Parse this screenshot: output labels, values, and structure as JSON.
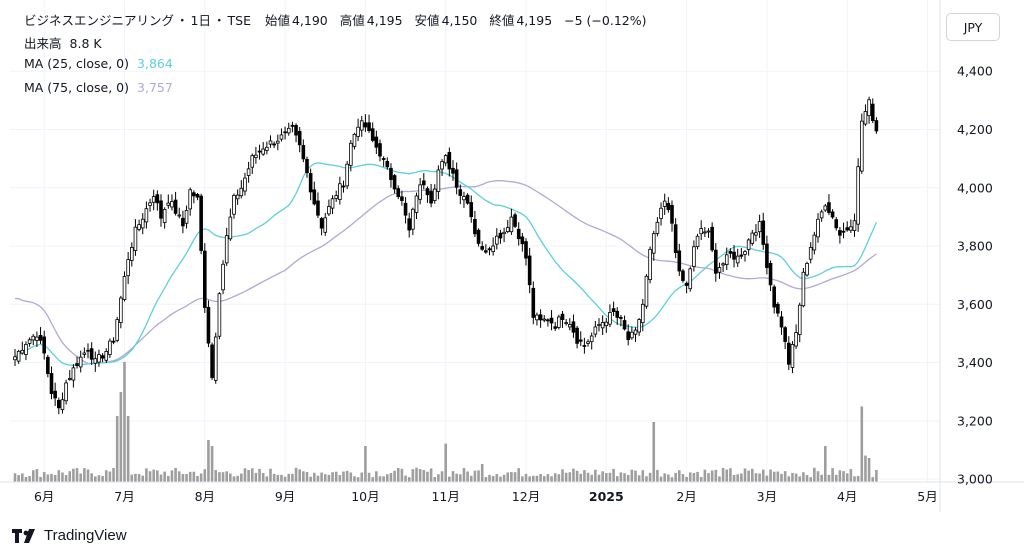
{
  "header": {
    "symbol": "ビジネスエンジニアリング",
    "sep1": "・",
    "interval": "1日",
    "sep2": "・",
    "exchange": "TSE",
    "open_label": "始値",
    "open": "4,190",
    "high_label": "高値",
    "high": "4,195",
    "low_label": "安値",
    "low": "4,150",
    "close_label": "終値",
    "close": "4,195",
    "change": "−5 (−0.12%)",
    "volume_label": "出来高",
    "volume": "8.8 K",
    "ma25_label": "MA (25, close, 0)",
    "ma25_value": "3,864",
    "ma75_label": "MA (75, close, 0)",
    "ma75_value": "3,757"
  },
  "currency": "JPY",
  "brand": "TradingView",
  "colors": {
    "up_body": "#ffffff",
    "down_body": "#000000",
    "candle_outline": "#000000",
    "volume": "#9e9e9e",
    "ma25": "#5cd0dc",
    "ma75": "#b4a7d6",
    "grid": "#f0f3fa",
    "text": "#131722"
  },
  "chart_data": {
    "type": "candlestick",
    "y_axis": {
      "ticks": [
        "4,400",
        "4,200",
        "4,000",
        "3,800",
        "3,600",
        "3,400",
        "3,200",
        "3,000"
      ],
      "tick_values": [
        4400,
        4200,
        4000,
        3800,
        3600,
        3400,
        3200,
        3000
      ],
      "range": [
        2990,
        4490
      ]
    },
    "x_axis": {
      "ticks": [
        "6月",
        "7月",
        "8月",
        "9月",
        "10月",
        "11月",
        "12月",
        "2025",
        "2月",
        "3月",
        "4月",
        "5月"
      ],
      "tick_index": [
        8,
        30,
        52,
        74,
        96,
        118,
        140,
        162,
        184,
        206,
        228,
        250
      ],
      "bold_tick": "2025"
    },
    "grid": true,
    "ma25_last": 3864,
    "ma75_last": 3757,
    "anchors": [
      [
        0,
        3420
      ],
      [
        3,
        3470
      ],
      [
        6,
        3500
      ],
      [
        8,
        3430
      ],
      [
        10,
        3300
      ],
      [
        12,
        3240
      ],
      [
        14,
        3330
      ],
      [
        17,
        3400
      ],
      [
        20,
        3450
      ],
      [
        22,
        3400
      ],
      [
        25,
        3440
      ],
      [
        27,
        3480
      ],
      [
        29,
        3620
      ],
      [
        31,
        3760
      ],
      [
        33,
        3850
      ],
      [
        35,
        3900
      ],
      [
        38,
        3980
      ],
      [
        40,
        3900
      ],
      [
        42,
        3960
      ],
      [
        44,
        3920
      ],
      [
        46,
        3870
      ],
      [
        48,
        3990
      ],
      [
        50,
        3960
      ],
      [
        52,
        3600
      ],
      [
        54,
        3350
      ],
      [
        56,
        3650
      ],
      [
        58,
        3830
      ],
      [
        60,
        3960
      ],
      [
        62,
        4000
      ],
      [
        65,
        4100
      ],
      [
        68,
        4140
      ],
      [
        71,
        4160
      ],
      [
        74,
        4180
      ],
      [
        76,
        4200
      ],
      [
        78,
        4140
      ],
      [
        80,
        4050
      ],
      [
        82,
        3950
      ],
      [
        84,
        3870
      ],
      [
        86,
        3930
      ],
      [
        88,
        3980
      ],
      [
        90,
        4020
      ],
      [
        92,
        4150
      ],
      [
        94,
        4220
      ],
      [
        96,
        4210
      ],
      [
        98,
        4160
      ],
      [
        100,
        4120
      ],
      [
        102,
        4060
      ],
      [
        104,
        4010
      ],
      [
        106,
        3950
      ],
      [
        108,
        3850
      ],
      [
        110,
        3980
      ],
      [
        112,
        4020
      ],
      [
        114,
        3960
      ],
      [
        116,
        4060
      ],
      [
        118,
        4100
      ],
      [
        120,
        4050
      ],
      [
        122,
        3980
      ],
      [
        124,
        3960
      ],
      [
        126,
        3850
      ],
      [
        128,
        3780
      ],
      [
        130,
        3800
      ],
      [
        132,
        3830
      ],
      [
        134,
        3850
      ],
      [
        136,
        3900
      ],
      [
        138,
        3840
      ],
      [
        140,
        3760
      ],
      [
        142,
        3560
      ],
      [
        144,
        3540
      ],
      [
        146,
        3550
      ],
      [
        148,
        3530
      ],
      [
        150,
        3560
      ],
      [
        152,
        3540
      ],
      [
        154,
        3480
      ],
      [
        156,
        3460
      ],
      [
        158,
        3490
      ],
      [
        160,
        3530
      ],
      [
        162,
        3550
      ],
      [
        164,
        3570
      ],
      [
        166,
        3540
      ],
      [
        168,
        3480
      ],
      [
        170,
        3500
      ],
      [
        172,
        3600
      ],
      [
        174,
        3780
      ],
      [
        176,
        3880
      ],
      [
        178,
        3950
      ],
      [
        180,
        3880
      ],
      [
        182,
        3700
      ],
      [
        184,
        3660
      ],
      [
        186,
        3790
      ],
      [
        188,
        3860
      ],
      [
        190,
        3840
      ],
      [
        192,
        3720
      ],
      [
        194,
        3740
      ],
      [
        196,
        3770
      ],
      [
        198,
        3760
      ],
      [
        200,
        3790
      ],
      [
        202,
        3850
      ],
      [
        204,
        3870
      ],
      [
        206,
        3740
      ],
      [
        208,
        3600
      ],
      [
        210,
        3530
      ],
      [
        212,
        3400
      ],
      [
        214,
        3500
      ],
      [
        216,
        3700
      ],
      [
        218,
        3800
      ],
      [
        220,
        3880
      ],
      [
        222,
        3950
      ],
      [
        224,
        3900
      ],
      [
        226,
        3840
      ],
      [
        228,
        3860
      ],
      [
        230,
        3900
      ],
      [
        232,
        4230
      ],
      [
        234,
        4290
      ],
      [
        236,
        4195
      ]
    ],
    "volume_spikes": {
      "28": 0.55,
      "29": 0.75,
      "30": 1.0,
      "31": 0.55,
      "53": 0.35,
      "54": 0.3,
      "96": 0.3,
      "118": 0.32,
      "128": 0.15,
      "175": 0.5,
      "222": 0.3,
      "232": 0.63,
      "233": 0.22,
      "234": 0.2
    }
  }
}
